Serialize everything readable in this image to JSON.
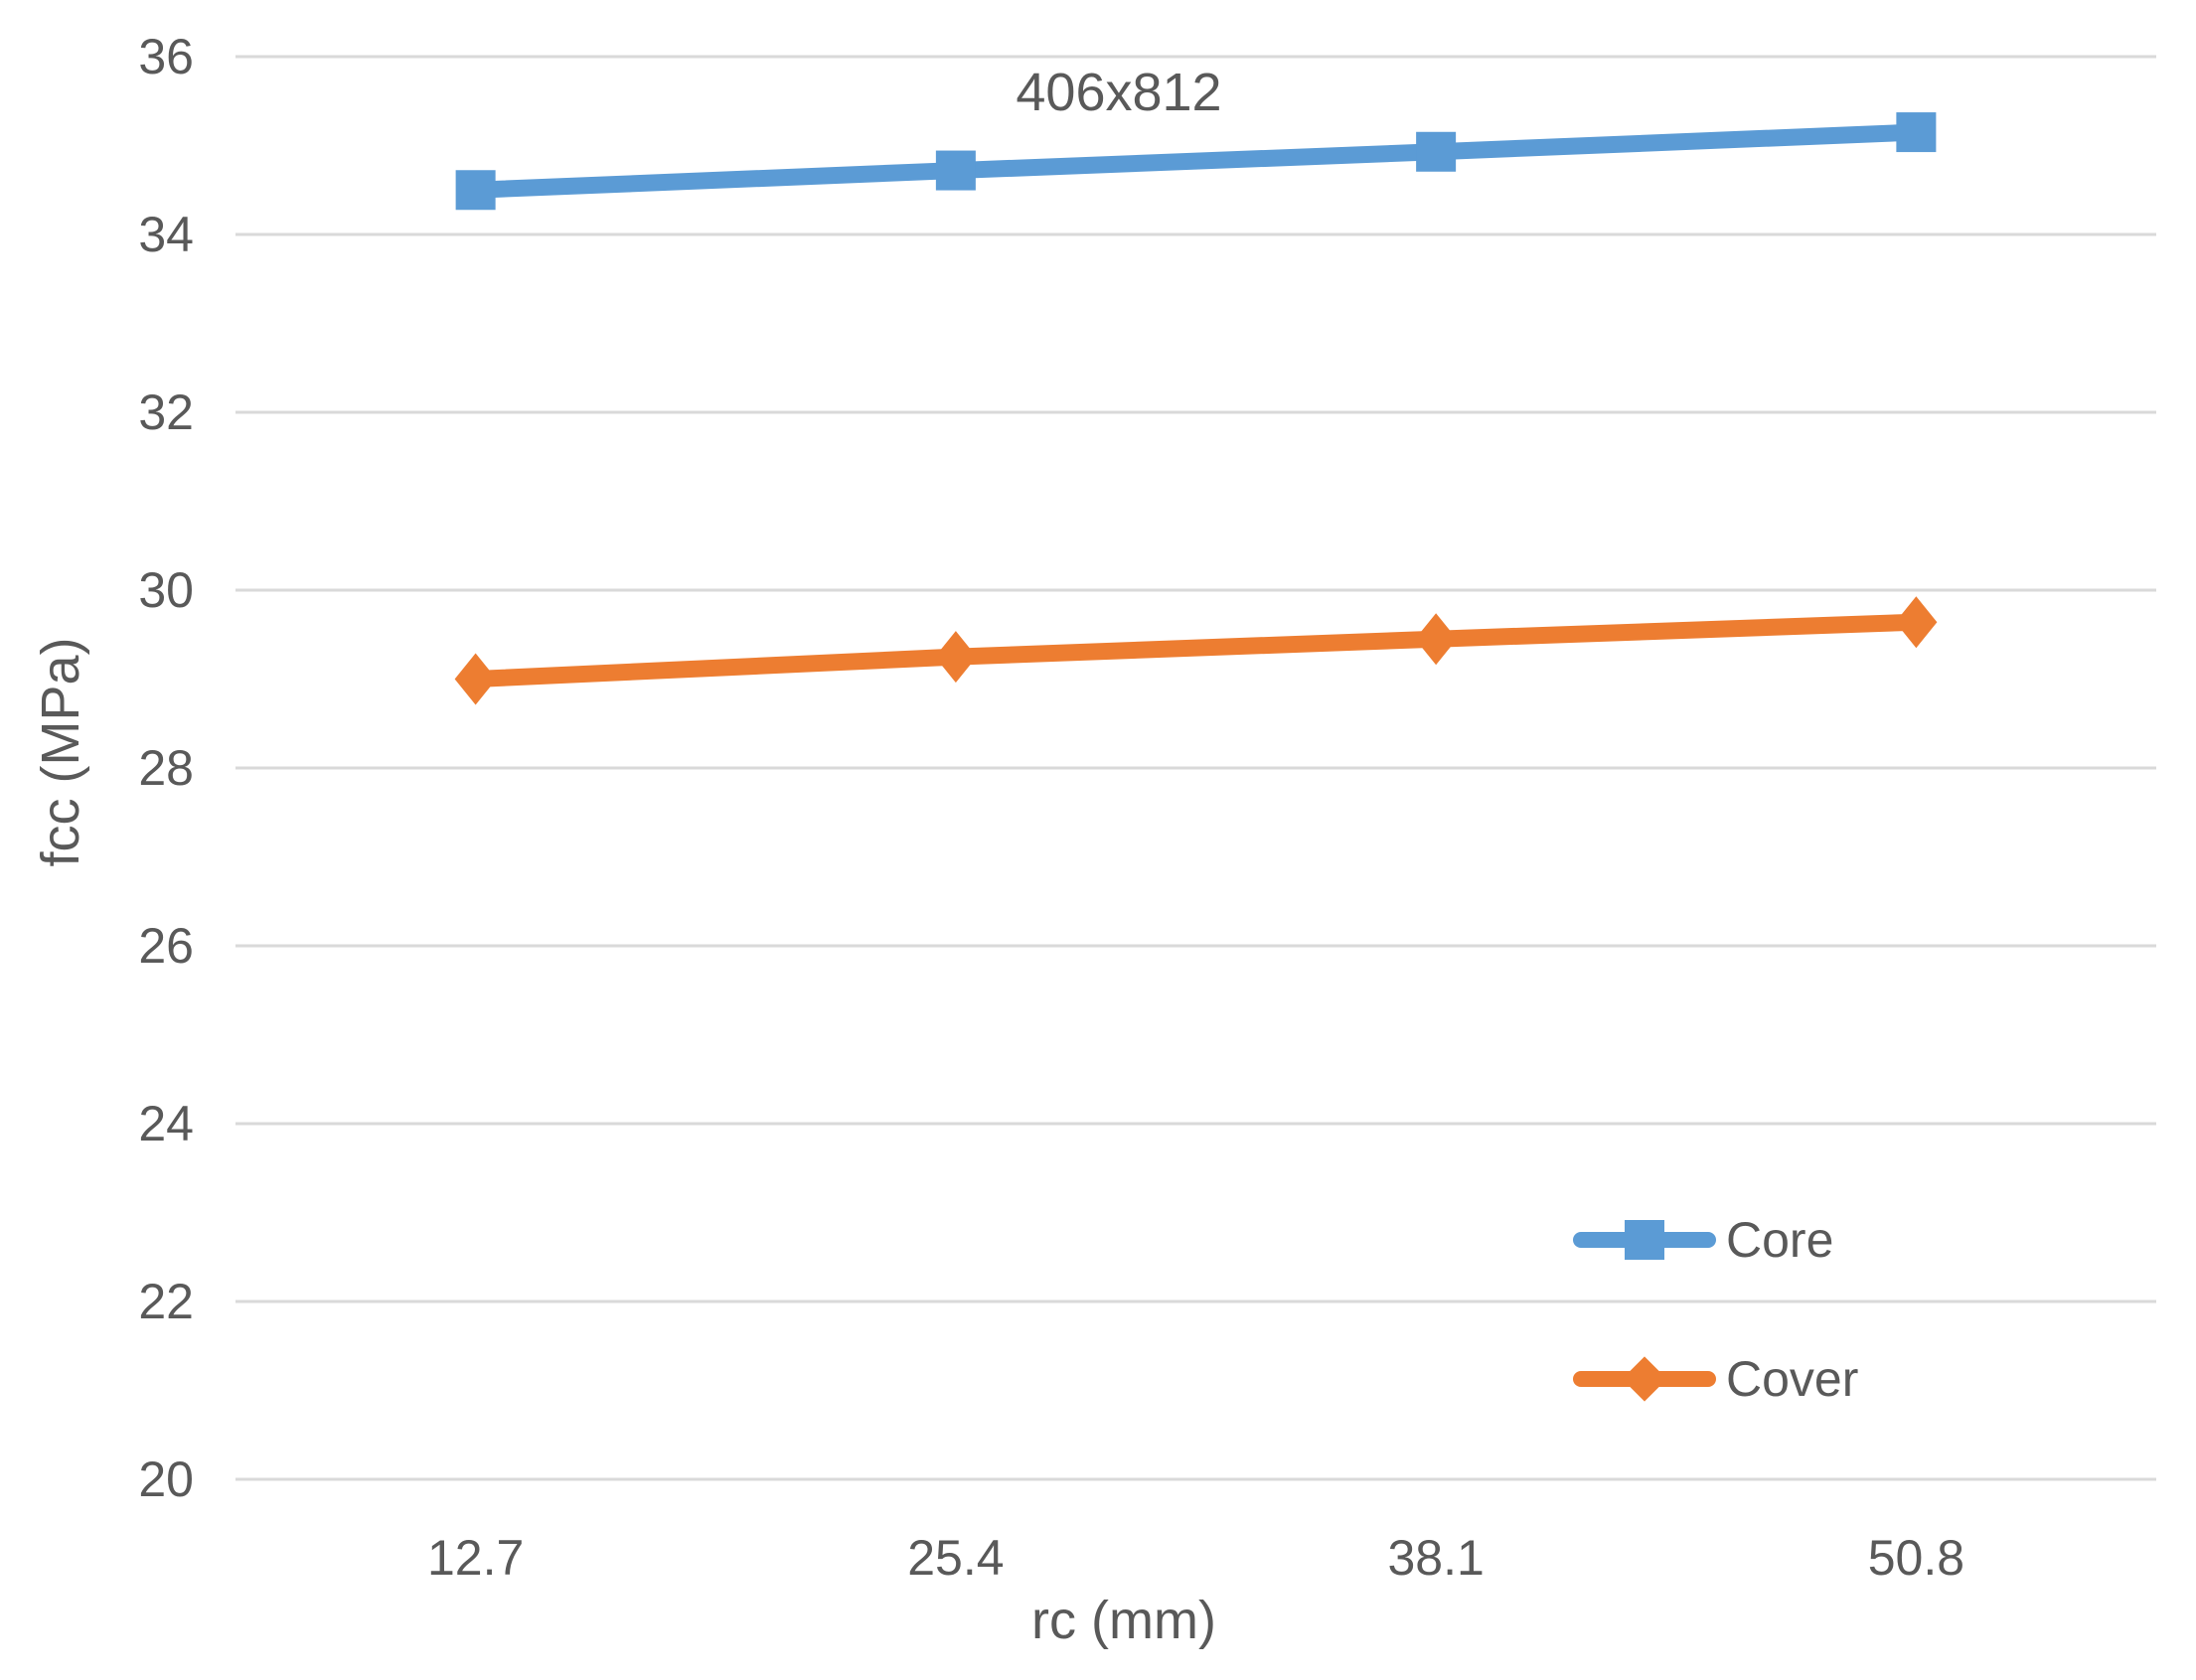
{
  "chart_data": {
    "type": "line",
    "title": "406x812",
    "xlabel": "rc (mm)",
    "ylabel": "fcc (MPa)",
    "categories": [
      "12.7",
      "25.4",
      "38.1",
      "50.8"
    ],
    "series": [
      {
        "name": "Core",
        "values": [
          34.5,
          34.72,
          34.93,
          35.15
        ],
        "color": "#5B9BD5",
        "marker": "square"
      },
      {
        "name": "Cover",
        "values": [
          29.0,
          29.25,
          29.45,
          29.64
        ],
        "color": "#ED7D31",
        "marker": "diamond"
      }
    ],
    "ylim": [
      20,
      36
    ],
    "y_ticks": [
      36,
      34,
      32,
      30,
      28,
      26,
      24,
      22,
      20
    ],
    "grid": "horizontal",
    "legend_position": "inside-bottom-right"
  },
  "colors": {
    "text": "#595959",
    "gridline": "#D9D9D9",
    "background": "#FFFFFF"
  }
}
